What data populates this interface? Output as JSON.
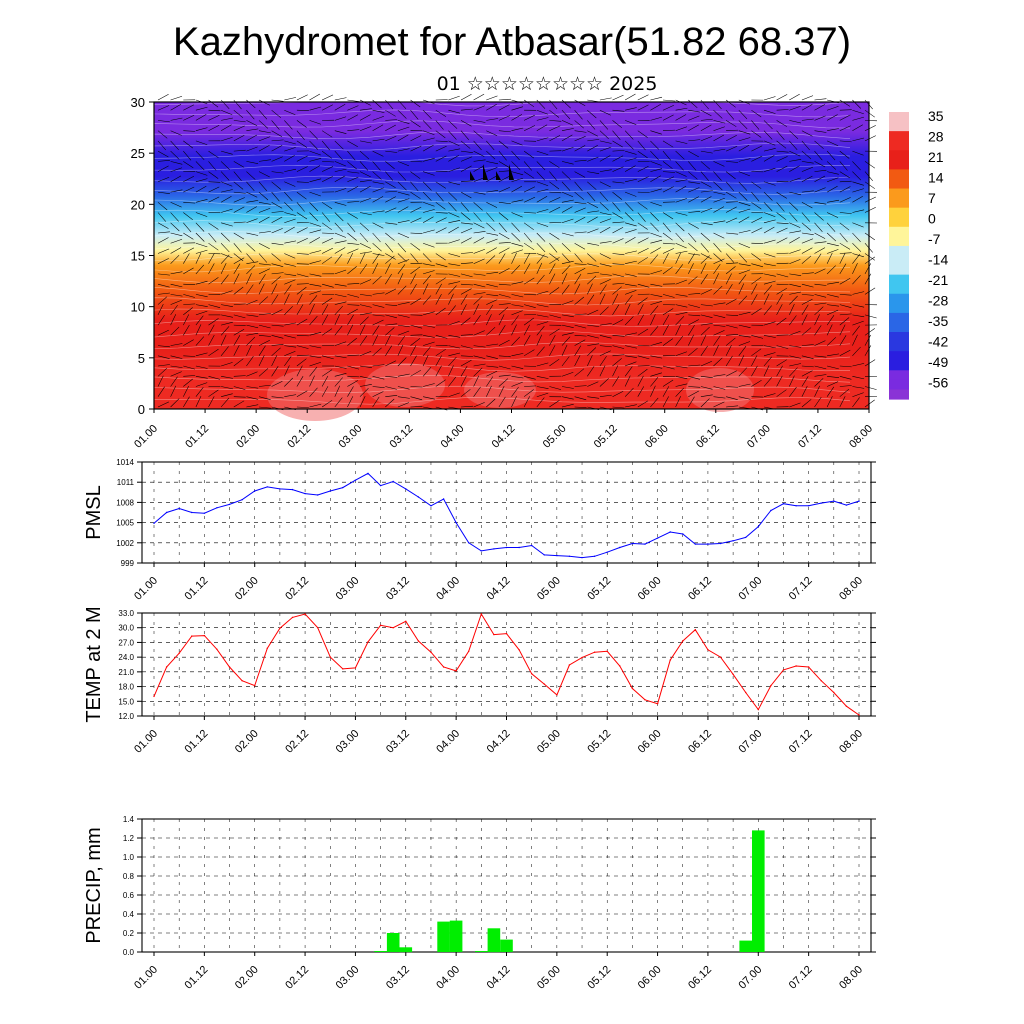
{
  "title": "Kazhydromet for Atbasar(51.82 68.37)",
  "subtitle": "01 ☆☆☆☆☆☆☆☆ 2025",
  "chart_data": [
    {
      "type": "heatmap",
      "name": "vertical-cross-section",
      "x_tick_labels": [
        "01.00",
        "01.12",
        "02.00",
        "02.12",
        "03.00",
        "03.12",
        "04.00",
        "04.12",
        "05.00",
        "05.12",
        "06.00",
        "06.12",
        "07.00",
        "07.12",
        "08.00"
      ],
      "y_ticks": [
        0,
        5,
        10,
        15,
        20,
        25,
        30
      ],
      "ylim": [
        0,
        30
      ],
      "colorbar_labels": [
        "35",
        "28",
        "21",
        "14",
        "7",
        "0",
        "-7",
        "-14",
        "-21",
        "-28",
        "-35",
        "-42",
        "-49",
        "-56"
      ],
      "temperature_by_level": [
        {
          "y": 0,
          "t": 30
        },
        {
          "y": 3,
          "t": 26
        },
        {
          "y": 6,
          "t": 22
        },
        {
          "y": 9,
          "t": 18
        },
        {
          "y": 12,
          "t": 12
        },
        {
          "y": 14.5,
          "t": 4
        },
        {
          "y": 16,
          "t": -6
        },
        {
          "y": 17.5,
          "t": -14
        },
        {
          "y": 19.5,
          "t": -24
        },
        {
          "y": 21.5,
          "t": -34
        },
        {
          "y": 23.5,
          "t": -46
        },
        {
          "y": 25.5,
          "t": -52
        },
        {
          "y": 28,
          "t": -56
        },
        {
          "y": 31,
          "t": -58
        }
      ],
      "colors": {
        "warm": "#e8201a",
        "cold": "#2a1ee0",
        "mid": "#fff59a"
      }
    },
    {
      "type": "line",
      "ylabel": "PMSL",
      "ylim": [
        999,
        1014
      ],
      "y_tick_labels": [
        "1014",
        "1011",
        "1008",
        "1005",
        "1002",
        "999"
      ],
      "y_ticks": [
        1014,
        1011,
        1008,
        1005,
        1002,
        999
      ],
      "x_tick_labels": [
        "01.00",
        "01.12",
        "02.00",
        "02.12",
        "03.00",
        "03.12",
        "04.00",
        "04.12",
        "05.00",
        "05.12",
        "06.00",
        "06.12",
        "07.00",
        "07.12",
        "08.00"
      ],
      "color": "#0000ff",
      "series": [
        {
          "values": [
            1004.9,
            1006.5,
            1007.1,
            1006.5,
            1006.4,
            1007.2,
            1007.7,
            1008.4,
            1009.7,
            1010.3,
            1010.0,
            1009.9,
            1009.3,
            1009.1,
            1009.7,
            1010.2,
            1011.3,
            1012.3,
            1010.5,
            1011.1,
            1010.0,
            1008.8,
            1007.5,
            1008.5,
            1005.0,
            1002.0,
            1000.8,
            1001.1,
            1001.3,
            1001.3,
            1001.6,
            1000.2,
            1000.1,
            1000.0,
            999.8,
            1000.0,
            1000.6,
            1001.3,
            1001.9,
            1001.8,
            1002.7,
            1003.6,
            1003.3,
            1001.8,
            1001.8,
            1001.9,
            1002.3,
            1002.8,
            1004.4,
            1006.8,
            1007.8,
            1007.5,
            1007.5,
            1007.9,
            1008.2,
            1007.6,
            1008.2
          ]
        }
      ]
    },
    {
      "type": "line",
      "ylabel": "TEMP at 2 M",
      "ylim": [
        12,
        33
      ],
      "y_tick_labels": [
        "33.0",
        "30.0",
        "27.0",
        "24.0",
        "21.0",
        "18.0",
        "15.0",
        "12.0"
      ],
      "y_ticks": [
        33,
        30,
        27,
        24,
        21,
        18,
        15,
        12
      ],
      "x_tick_labels": [
        "01.00",
        "01.12",
        "02.00",
        "02.12",
        "03.00",
        "03.12",
        "04.00",
        "04.12",
        "05.00",
        "05.12",
        "06.00",
        "06.12",
        "07.00",
        "07.12",
        "08.00"
      ],
      "color": "#ff0000",
      "series": [
        {
          "values": [
            16.0,
            22.0,
            24.8,
            28.3,
            28.4,
            25.6,
            22.0,
            19.2,
            18.2,
            25.8,
            29.9,
            32.1,
            32.8,
            30.0,
            24.0,
            21.6,
            21.8,
            27.1,
            30.5,
            30.0,
            31.3,
            27.3,
            25.0,
            22.0,
            21.2,
            25.2,
            32.8,
            28.6,
            28.8,
            25.5,
            20.6,
            18.5,
            16.3,
            22.4,
            23.9,
            25.0,
            25.2,
            22.2,
            17.6,
            15.3,
            14.5,
            23.4,
            27.3,
            29.6,
            25.5,
            24.0,
            20.5,
            16.8,
            13.3,
            18.2,
            21.4,
            22.2,
            22.0,
            19.2,
            16.8,
            14.0,
            12.2
          ]
        }
      ]
    },
    {
      "type": "bar",
      "ylabel": "PRECIP, mm",
      "ylim": [
        0,
        1.4
      ],
      "y_tick_labels": [
        "1.4",
        "1.2",
        "1.0",
        "0.8",
        "0.6",
        "0.4",
        "0.2",
        "0.0"
      ],
      "y_ticks": [
        1.4,
        1.2,
        1.0,
        0.8,
        0.6,
        0.4,
        0.2,
        0.0
      ],
      "x_tick_labels": [
        "01.00",
        "01.12",
        "02.00",
        "02.12",
        "03.00",
        "03.12",
        "04.00",
        "04.12",
        "05.00",
        "05.12",
        "06.00",
        "06.12",
        "07.00",
        "07.12",
        "08.00"
      ],
      "color": "#00ee00",
      "series": [
        {
          "values": [
            0,
            0,
            0,
            0,
            0,
            0,
            0,
            0,
            0,
            0,
            0,
            0,
            0,
            0,
            0,
            0,
            0,
            0,
            0.01,
            0.2,
            0.05,
            0,
            0,
            0.32,
            0.33,
            0,
            0.01,
            0.25,
            0.13,
            0,
            0,
            0,
            0,
            0,
            0,
            0,
            0,
            0,
            0,
            0,
            0,
            0,
            0,
            0,
            0,
            0,
            0,
            0.12,
            1.28,
            0,
            0,
            0,
            0,
            0,
            0,
            0,
            0
          ]
        }
      ]
    }
  ]
}
